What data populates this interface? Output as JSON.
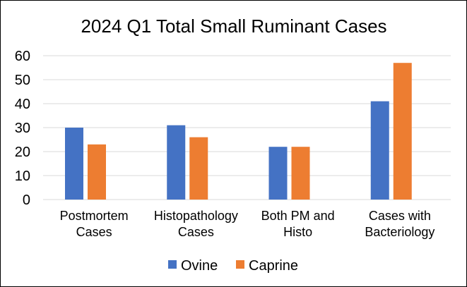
{
  "chart_data": {
    "type": "bar",
    "title": "2024 Q1 Total Small Ruminant Cases",
    "xlabel": "",
    "ylabel": "",
    "categories": [
      [
        "Postmortem",
        "Cases"
      ],
      [
        "Histopathology",
        "Cases"
      ],
      [
        "Both PM and",
        "Histo"
      ],
      [
        "Cases with",
        "Bacteriology"
      ]
    ],
    "series": [
      {
        "name": "Ovine",
        "color": "#4472c4",
        "values": [
          30,
          31,
          22,
          41
        ]
      },
      {
        "name": "Caprine",
        "color": "#ed7d31",
        "values": [
          23,
          26,
          22,
          57
        ]
      }
    ],
    "ylim": [
      0,
      60
    ],
    "yticks": [
      0,
      10,
      20,
      30,
      40,
      50,
      60
    ],
    "grid": true,
    "legend_position": "bottom"
  }
}
